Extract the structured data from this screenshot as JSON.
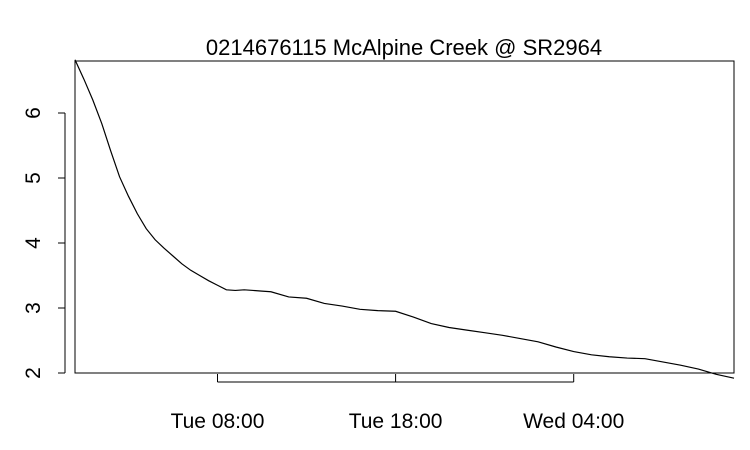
{
  "chart_data": {
    "type": "line",
    "title": "0214676115 McAlpine Creek @ SR2964",
    "xlabel": "",
    "ylabel": "",
    "xlim": [
      0,
      37
    ],
    "ylim": [
      2,
      6.8
    ],
    "yticks": [
      2,
      3,
      4,
      5,
      6
    ],
    "xticks": [
      {
        "value": 8,
        "label": "Tue 08:00"
      },
      {
        "value": 18,
        "label": "Tue 18:00"
      },
      {
        "value": 28,
        "label": "Wed 04:00"
      }
    ],
    "grid": false,
    "series": [
      {
        "values_x": [
          0,
          0.5,
          1,
          1.5,
          2,
          2.5,
          3,
          3.5,
          4,
          4.5,
          5,
          5.5,
          6,
          6.5,
          7,
          7.5,
          8,
          8.5,
          9,
          9.5,
          10,
          10.5,
          11,
          12,
          13,
          14,
          15,
          16,
          17,
          18,
          19,
          20,
          21,
          22,
          23,
          24,
          25,
          26,
          27,
          28,
          29,
          30,
          31,
          32,
          33,
          34,
          35,
          36,
          37
        ],
        "values_y": [
          6.82,
          6.52,
          6.2,
          5.84,
          5.42,
          5.02,
          4.72,
          4.45,
          4.22,
          4.05,
          3.92,
          3.8,
          3.68,
          3.58,
          3.5,
          3.42,
          3.35,
          3.28,
          3.27,
          3.28,
          3.27,
          3.26,
          3.25,
          3.17,
          3.15,
          3.07,
          3.03,
          2.98,
          2.96,
          2.95,
          2.86,
          2.76,
          2.7,
          2.66,
          2.62,
          2.58,
          2.53,
          2.48,
          2.4,
          2.33,
          2.28,
          2.25,
          2.23,
          2.22,
          2.17,
          2.12,
          2.06,
          1.98,
          1.92
        ]
      }
    ]
  }
}
